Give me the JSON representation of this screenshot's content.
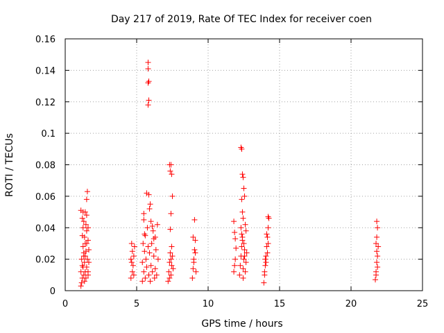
{
  "chart_data": {
    "type": "scatter",
    "title": "Day 217 of 2019, Rate Of TEC Index for receiver coen",
    "xlabel": "GPS time / hours",
    "ylabel": "ROTI / TECUs",
    "xlim": [
      0,
      25
    ],
    "ylim": [
      0,
      0.16
    ],
    "xticks": [
      "0",
      "5",
      "10",
      "15",
      "20",
      "25"
    ],
    "yticks": [
      "0",
      "0.02",
      "0.04",
      "0.06",
      "0.08",
      "0.1",
      "0.12",
      "0.14",
      "0.16"
    ],
    "grid": true,
    "marker": "+",
    "color": "#ff0000",
    "series": [
      {
        "x": [
          1.1,
          1.1,
          1.1,
          1.15,
          1.15,
          1.2,
          1.2,
          1.2,
          1.25,
          1.25,
          1.25,
          1.3,
          1.3,
          1.3,
          1.35,
          1.35,
          1.4,
          1.4,
          1.4,
          1.45,
          1.45,
          1.5,
          1.5,
          1.5,
          1.55,
          1.55,
          1.6,
          1.6,
          1.6,
          1.65,
          1.65,
          1.45,
          1.5,
          1.3,
          1.2,
          1.6,
          1.5,
          1.4,
          1.25,
          1.35,
          4.6,
          4.6,
          4.65,
          4.7,
          4.7,
          4.75,
          4.8,
          4.8,
          4.85,
          4.65,
          5.4,
          5.4,
          5.45,
          5.5,
          5.5,
          5.55,
          5.6,
          5.6,
          5.65,
          5.7,
          5.75,
          5.8,
          5.85,
          5.9,
          5.95,
          6.0,
          6.0,
          6.05,
          6.1,
          6.15,
          6.2,
          6.25,
          6.3,
          6.3,
          6.35,
          6.4,
          6.45,
          6.5,
          5.5,
          5.55,
          5.9,
          5.95,
          6.1,
          6.2,
          5.7,
          5.8,
          5.8,
          5.85,
          5.8,
          5.85,
          5.8,
          5.85,
          7.2,
          7.25,
          7.3,
          7.35,
          7.4,
          7.45,
          7.5,
          7.55,
          7.3,
          7.4,
          7.35,
          7.45,
          7.5,
          7.4,
          7.35,
          7.45,
          7.3,
          7.4,
          8.9,
          8.95,
          9.0,
          9.05,
          9.1,
          9.15,
          8.95,
          9.05,
          9.0,
          9.1,
          11.8,
          11.8,
          11.85,
          11.9,
          11.9,
          11.85,
          11.95,
          12.2,
          12.25,
          12.3,
          12.35,
          12.4,
          12.45,
          12.5,
          12.55,
          12.6,
          12.65,
          12.7,
          12.3,
          12.35,
          12.4,
          12.45,
          12.5,
          12.55,
          12.35,
          12.4,
          12.45,
          12.3,
          12.35,
          12.4,
          12.5,
          12.6,
          12.65,
          12.45,
          12.55,
          13.9,
          13.95,
          14.0,
          14.05,
          14.1,
          14.15,
          14.2,
          14.25,
          13.95,
          14.05,
          14.15,
          14.2,
          14.1,
          14.0,
          14.2,
          21.7,
          21.75,
          21.8,
          21.85,
          21.9,
          21.75,
          21.8,
          21.85,
          21.8,
          21.75,
          21.85,
          21.8
        ],
        "y": [
          0.003,
          0.012,
          0.051,
          0.005,
          0.02,
          0.008,
          0.035,
          0.046,
          0.015,
          0.028,
          0.05,
          0.01,
          0.022,
          0.044,
          0.006,
          0.018,
          0.012,
          0.03,
          0.05,
          0.008,
          0.025,
          0.015,
          0.038,
          0.058,
          0.063,
          0.02,
          0.01,
          0.032,
          0.04,
          0.018,
          0.026,
          0.042,
          0.048,
          0.024,
          0.016,
          0.012,
          0.03,
          0.022,
          0.04,
          0.034,
          0.008,
          0.02,
          0.03,
          0.012,
          0.025,
          0.016,
          0.01,
          0.022,
          0.028,
          0.018,
          0.006,
          0.018,
          0.03,
          0.012,
          0.045,
          0.025,
          0.008,
          0.035,
          0.02,
          0.015,
          0.04,
          0.028,
          0.01,
          0.024,
          0.006,
          0.044,
          0.016,
          0.03,
          0.012,
          0.038,
          0.022,
          0.008,
          0.034,
          0.014,
          0.026,
          0.01,
          0.042,
          0.02,
          0.049,
          0.036,
          0.052,
          0.055,
          0.041,
          0.033,
          0.062,
          0.145,
          0.141,
          0.133,
          0.132,
          0.121,
          0.118,
          0.061,
          0.006,
          0.012,
          0.018,
          0.024,
          0.01,
          0.016,
          0.022,
          0.014,
          0.08,
          0.08,
          0.076,
          0.074,
          0.06,
          0.049,
          0.039,
          0.028,
          0.008,
          0.02,
          0.008,
          0.014,
          0.02,
          0.026,
          0.032,
          0.012,
          0.034,
          0.045,
          0.018,
          0.024,
          0.012,
          0.044,
          0.037,
          0.033,
          0.02,
          0.016,
          0.027,
          0.01,
          0.016,
          0.022,
          0.028,
          0.034,
          0.008,
          0.02,
          0.026,
          0.012,
          0.018,
          0.024,
          0.091,
          0.09,
          0.074,
          0.072,
          0.065,
          0.06,
          0.058,
          0.05,
          0.046,
          0.04,
          0.036,
          0.032,
          0.03,
          0.042,
          0.038,
          0.014,
          0.022,
          0.005,
          0.01,
          0.016,
          0.022,
          0.028,
          0.034,
          0.04,
          0.046,
          0.012,
          0.018,
          0.024,
          0.03,
          0.036,
          0.02,
          0.047,
          0.007,
          0.012,
          0.018,
          0.022,
          0.028,
          0.03,
          0.034,
          0.04,
          0.044,
          0.01,
          0.015,
          0.025
        ]
      }
    ]
  }
}
